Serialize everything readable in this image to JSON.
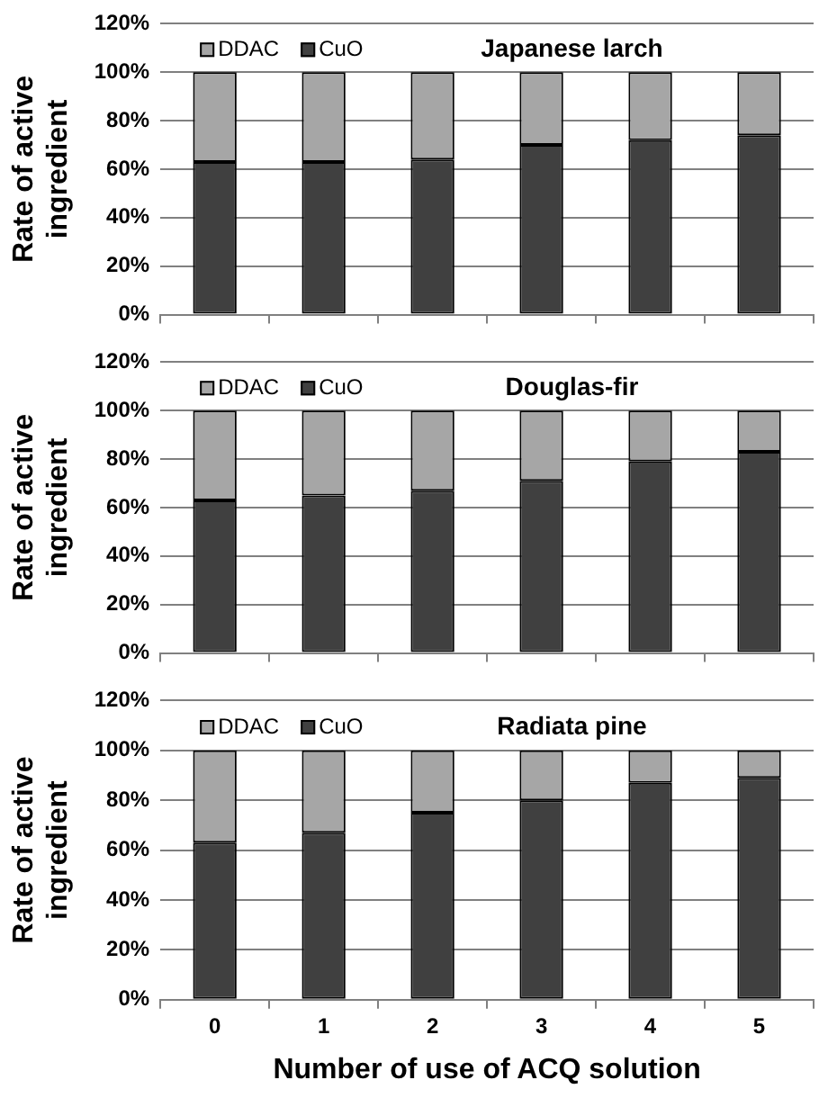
{
  "chart_data": [
    {
      "type": "bar",
      "title": "Japanese larch",
      "ylabel": "Rate of active ingredient",
      "categories": [
        "0",
        "1",
        "2",
        "3",
        "4",
        "5"
      ],
      "stacked": true,
      "legend": "top left",
      "grid": "y",
      "tick_labels": "y",
      "ylim": [
        0,
        120
      ],
      "yticks": [
        {
          "value": 0,
          "label": "0%"
        },
        {
          "value": 20,
          "label": "20%"
        },
        {
          "value": 40,
          "label": "40%"
        },
        {
          "value": 60,
          "label": "60%"
        },
        {
          "value": 80,
          "label": "80%"
        },
        {
          "value": 100,
          "label": "100%"
        },
        {
          "value": 120,
          "label": "120%"
        }
      ],
      "series": [
        {
          "name": "CuO",
          "color": "#404040",
          "values": [
            63,
            63,
            64,
            70,
            72,
            74
          ]
        },
        {
          "name": "DDAC",
          "color": "#a6a6a6",
          "values": [
            37,
            37,
            36,
            30,
            28,
            26
          ]
        }
      ]
    },
    {
      "type": "bar",
      "title": "Douglas-fir",
      "ylabel": "Rate of active ingredient",
      "categories": [
        "0",
        "1",
        "2",
        "3",
        "4",
        "5"
      ],
      "stacked": true,
      "legend": "top left",
      "grid": "y",
      "tick_labels": "y",
      "ylim": [
        0,
        120
      ],
      "yticks": [
        {
          "value": 0,
          "label": "0%"
        },
        {
          "value": 20,
          "label": "20%"
        },
        {
          "value": 40,
          "label": "40%"
        },
        {
          "value": 60,
          "label": "60%"
        },
        {
          "value": 80,
          "label": "80%"
        },
        {
          "value": 100,
          "label": "100%"
        },
        {
          "value": 120,
          "label": "120%"
        }
      ],
      "series": [
        {
          "name": "CuO",
          "color": "#404040",
          "values": [
            63,
            65,
            67,
            71,
            79,
            83
          ]
        },
        {
          "name": "DDAC",
          "color": "#a6a6a6",
          "values": [
            37,
            35,
            33,
            29,
            21,
            17
          ]
        }
      ]
    },
    {
      "type": "bar",
      "title": "Radiata pine",
      "ylabel": "Rate of active ingredient",
      "xlabel": "Number of use of ACQ solution",
      "categories": [
        "0",
        "1",
        "2",
        "3",
        "4",
        "5"
      ],
      "stacked": true,
      "legend": "top left",
      "grid": "y",
      "ylim": [
        0,
        120
      ],
      "yticks": [
        {
          "value": 0,
          "label": "0%"
        },
        {
          "value": 20,
          "label": "20%"
        },
        {
          "value": 40,
          "label": "40%"
        },
        {
          "value": 60,
          "label": "60%"
        },
        {
          "value": 80,
          "label": "80%"
        },
        {
          "value": 100,
          "label": "100%"
        },
        {
          "value": 120,
          "label": "120%"
        }
      ],
      "series": [
        {
          "name": "CuO",
          "color": "#404040",
          "values": [
            63,
            67,
            75,
            80,
            87,
            89
          ]
        },
        {
          "name": "DDAC",
          "color": "#a6a6a6",
          "values": [
            37,
            33,
            25,
            20,
            13,
            11
          ]
        }
      ]
    }
  ]
}
